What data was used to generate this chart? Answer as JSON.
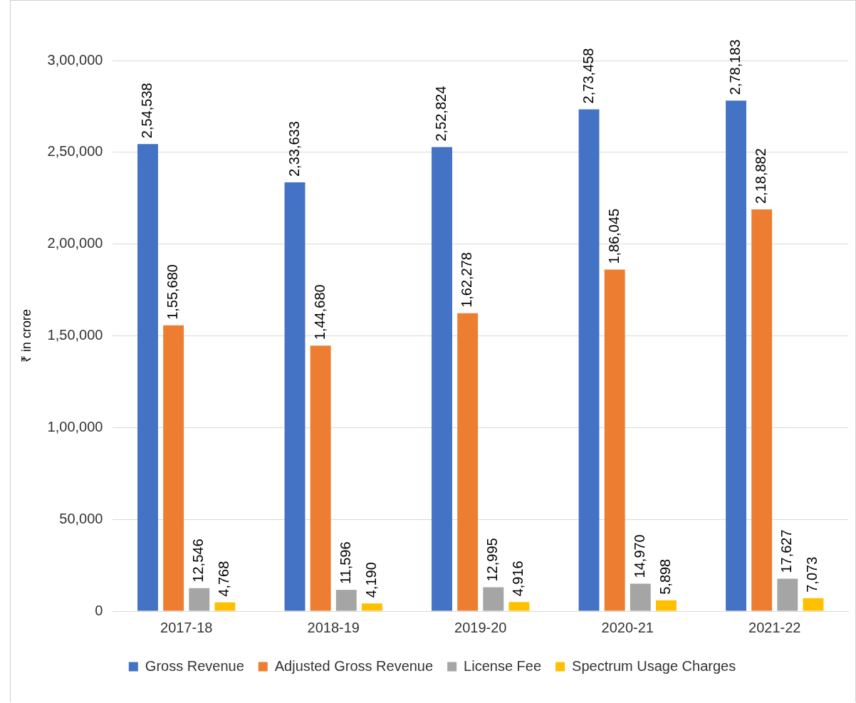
{
  "chart_data": {
    "type": "bar",
    "ylabel": "₹ in crore",
    "categories": [
      "2017-18",
      "2018-19",
      "2019-20",
      "2020-21",
      "2021-22"
    ],
    "series": [
      {
        "name": "Gross Revenue",
        "color": "#4472c4",
        "values": [
          254538,
          233633,
          252824,
          273458,
          278183
        ],
        "value_labels": [
          "2,54,538",
          "2,33,633",
          "2,52,824",
          "2,73,458",
          "2,78,183"
        ]
      },
      {
        "name": "Adjusted Gross Revenue",
        "color": "#ed7d31",
        "values": [
          155680,
          144680,
          162278,
          186045,
          218882
        ],
        "value_labels": [
          "1,55,680",
          "1,44,680",
          "1,62,278",
          "1,86,045",
          "2,18,882"
        ]
      },
      {
        "name": "License Fee",
        "color": "#a5a5a5",
        "values": [
          12546,
          11596,
          12995,
          14970,
          17627
        ],
        "value_labels": [
          "12,546",
          "11,596",
          "12,995",
          "14,970",
          "17,627"
        ]
      },
      {
        "name": "Spectrum Usage Charges",
        "color": "#ffc000",
        "values": [
          4768,
          4190,
          4916,
          5898,
          7073
        ],
        "value_labels": [
          "4,768",
          "4,190",
          "4,916",
          "5,898",
          "7,073"
        ]
      }
    ],
    "ylim": [
      0,
      300000
    ],
    "yticks": [
      {
        "value": 0,
        "label": "0"
      },
      {
        "value": 50000,
        "label": "50,000"
      },
      {
        "value": 100000,
        "label": "1,00,000"
      },
      {
        "value": 150000,
        "label": "1,50,000"
      },
      {
        "value": 200000,
        "label": "2,00,000"
      },
      {
        "value": 250000,
        "label": "2,50,000"
      },
      {
        "value": 300000,
        "label": "3,00,000"
      }
    ],
    "grid": "y",
    "legend": "bottom"
  }
}
